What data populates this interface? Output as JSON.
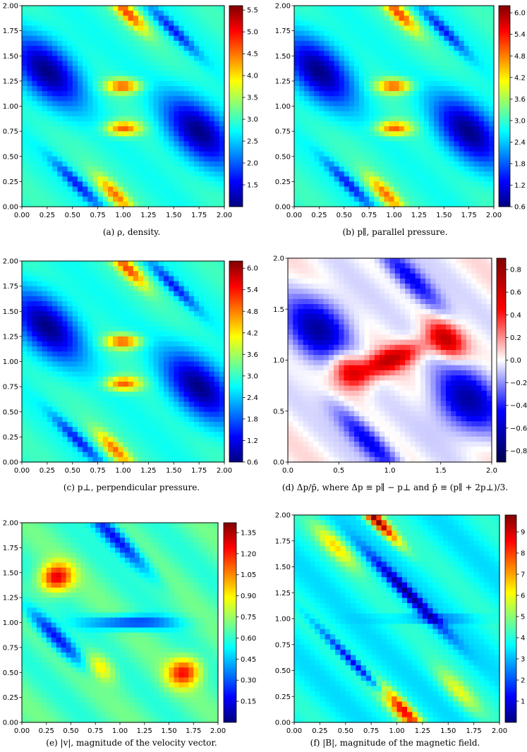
{
  "colormaps": {
    "jet": [
      "#00007f",
      "#0000ff",
      "#007fff",
      "#00ffff",
      "#7fff7f",
      "#ffff00",
      "#ff7f00",
      "#ff0000",
      "#7f0000"
    ],
    "seismic": [
      "#00004c",
      "#0000ff",
      "#ffffff",
      "#ff0000",
      "#7f0000"
    ]
  },
  "chart_data": [
    {
      "id": "a",
      "type": "heatmap",
      "colormap": "jet",
      "caption": "(a) ρ, density.",
      "xlim": [
        0,
        2
      ],
      "ylim": [
        0,
        2
      ],
      "xticks": [
        "0.00",
        "0.25",
        "0.50",
        "0.75",
        "1.00",
        "1.25",
        "1.50",
        "1.75",
        "2.00"
      ],
      "yticks": [
        "0.00",
        "0.25",
        "0.50",
        "0.75",
        "1.00",
        "1.25",
        "1.50",
        "1.75",
        "2.00"
      ],
      "colorbar": {
        "min": 1.0,
        "max": 5.6,
        "ticks": [
          "1.5",
          "2.0",
          "2.5",
          "3.0",
          "3.5",
          "4.0",
          "4.5",
          "5.0",
          "5.5"
        ]
      }
    },
    {
      "id": "b",
      "type": "heatmap",
      "colormap": "jet",
      "caption": "(b) p∥, parallel pressure.",
      "xlim": [
        0,
        2
      ],
      "ylim": [
        0,
        2
      ],
      "xticks": [
        "0.00",
        "0.25",
        "0.50",
        "0.75",
        "1.00",
        "1.25",
        "1.50",
        "1.75",
        "2.00"
      ],
      "yticks": [
        "0.00",
        "0.25",
        "0.50",
        "0.75",
        "1.00",
        "1.25",
        "1.50",
        "1.75",
        "2.00"
      ],
      "colorbar": {
        "min": 0.6,
        "max": 6.2,
        "ticks": [
          "0.6",
          "1.2",
          "1.8",
          "2.4",
          "3.0",
          "3.6",
          "4.2",
          "4.8",
          "5.4",
          "6.0"
        ]
      }
    },
    {
      "id": "c",
      "type": "heatmap",
      "colormap": "jet",
      "caption": "(c) p⊥, perpendicular pressure.",
      "xlim": [
        0,
        2
      ],
      "ylim": [
        0,
        2
      ],
      "xticks": [
        "0.00",
        "0.25",
        "0.50",
        "0.75",
        "1.00",
        "1.25",
        "1.50",
        "1.75",
        "2.00"
      ],
      "yticks": [
        "0.00",
        "0.25",
        "0.50",
        "0.75",
        "1.00",
        "1.25",
        "1.50",
        "1.75",
        "2.00"
      ],
      "colorbar": {
        "min": 0.6,
        "max": 6.2,
        "ticks": [
          "0.6",
          "1.2",
          "1.8",
          "2.4",
          "3.0",
          "3.6",
          "4.2",
          "4.8",
          "5.4",
          "6.0"
        ]
      }
    },
    {
      "id": "d",
      "type": "heatmap",
      "colormap": "seismic",
      "caption": "(d) Δp/p̄, where Δp ≡ p∥ − p⊥ and p̄ ≡ (p∥ + 2p⊥)/3.",
      "xlim": [
        0,
        2
      ],
      "ylim": [
        0,
        2
      ],
      "xticks": [
        "0.0",
        "0.5",
        "1.0",
        "1.5",
        "2.0"
      ],
      "yticks": [
        "0.0",
        "0.5",
        "1.0",
        "1.5",
        "2.0"
      ],
      "colorbar": {
        "min": -0.9,
        "max": 0.9,
        "ticks": [
          "−0.8",
          "−0.6",
          "−0.4",
          "−0.2",
          "0.0",
          "0.2",
          "0.4",
          "0.6",
          "0.8"
        ]
      }
    },
    {
      "id": "e",
      "type": "heatmap",
      "colormap": "jet",
      "caption": "(e) |v|, magnitude of the velocity vector.",
      "xlim": [
        0,
        2
      ],
      "ylim": [
        0,
        2
      ],
      "xticks": [
        "0.00",
        "0.25",
        "0.50",
        "0.75",
        "1.00",
        "1.25",
        "1.50",
        "1.75",
        "2.00"
      ],
      "yticks": [
        "0.00",
        "0.25",
        "0.50",
        "0.75",
        "1.00",
        "1.25",
        "1.50",
        "1.75",
        "2.00"
      ],
      "colorbar": {
        "min": 0.0,
        "max": 1.42,
        "ticks": [
          "0.15",
          "0.30",
          "0.45",
          "0.60",
          "0.75",
          "0.90",
          "1.05",
          "1.20",
          "1.35"
        ]
      }
    },
    {
      "id": "f",
      "type": "heatmap",
      "colormap": "jet",
      "caption": "(f) |B|, magnitude of the magnetic field.",
      "xlim": [
        0,
        2
      ],
      "ylim": [
        0,
        2
      ],
      "xticks": [
        "0.00",
        "0.25",
        "0.50",
        "0.75",
        "1.00",
        "1.25",
        "1.50",
        "1.75",
        "2.00"
      ],
      "yticks": [
        "0.00",
        "0.25",
        "0.50",
        "0.75",
        "1.00",
        "1.25",
        "1.50",
        "1.75",
        "2.00"
      ],
      "colorbar": {
        "min": 0.0,
        "max": 9.8,
        "ticks": [
          "1",
          "2",
          "3",
          "4",
          "5",
          "6",
          "7",
          "8",
          "9"
        ]
      }
    }
  ]
}
